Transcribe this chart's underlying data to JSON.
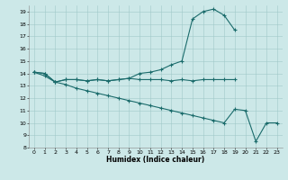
{
  "xlabel": "Humidex (Indice chaleur)",
  "bg_color": "#cce8e8",
  "grid_color": "#a0c8c8",
  "line_color": "#1a6b6b",
  "xlim": [
    -0.5,
    23.5
  ],
  "ylim": [
    8,
    19.5
  ],
  "yticks": [
    8,
    9,
    10,
    11,
    12,
    13,
    14,
    15,
    16,
    17,
    18,
    19
  ],
  "xticks": [
    0,
    1,
    2,
    3,
    4,
    5,
    6,
    7,
    8,
    9,
    10,
    11,
    12,
    13,
    14,
    15,
    16,
    17,
    18,
    19,
    20,
    21,
    22,
    23
  ],
  "curve1_x": [
    0,
    1,
    2,
    3,
    4,
    5,
    6,
    7,
    8,
    9,
    10,
    11,
    12,
    13,
    14,
    15,
    16,
    17,
    18,
    19
  ],
  "curve1_y": [
    14.1,
    14.0,
    13.3,
    13.5,
    13.5,
    13.4,
    13.5,
    13.4,
    13.5,
    13.6,
    14.0,
    14.1,
    14.3,
    14.7,
    15.0,
    18.4,
    19.0,
    19.2,
    18.7,
    17.5
  ],
  "curve2_x": [
    0,
    1,
    2,
    3,
    4,
    5,
    6,
    7,
    8,
    9,
    10,
    11,
    12,
    13,
    14,
    15,
    16,
    17,
    18,
    19
  ],
  "curve2_y": [
    14.1,
    14.0,
    13.3,
    13.5,
    13.5,
    13.4,
    13.5,
    13.4,
    13.5,
    13.6,
    13.5,
    13.5,
    13.5,
    13.4,
    13.5,
    13.4,
    13.5,
    13.5,
    13.5,
    13.5
  ],
  "curve3_x": [
    0,
    1,
    2,
    3,
    4,
    5,
    6,
    7,
    8,
    9,
    10,
    11,
    12,
    13,
    14,
    15,
    16,
    17,
    18,
    19,
    20,
    21,
    22,
    23
  ],
  "curve3_y": [
    14.1,
    13.8,
    13.3,
    13.1,
    12.8,
    12.6,
    12.4,
    12.2,
    12.0,
    11.8,
    11.6,
    11.4,
    11.2,
    11.0,
    10.8,
    10.6,
    10.4,
    10.2,
    10.0,
    11.1,
    11.0,
    8.5,
    10.0,
    10.0
  ]
}
